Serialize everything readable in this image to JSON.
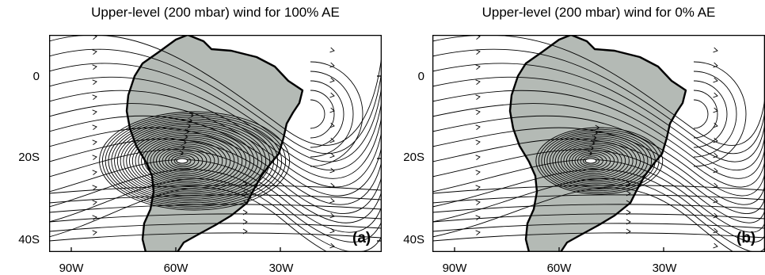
{
  "panels": [
    {
      "title": "Upper-level (200 mbar) wind for 100% AE",
      "label": "(a)"
    },
    {
      "title": "Upper-level (200 mbar) wind for 0% AE",
      "label": "(b)"
    }
  ],
  "axes": {
    "y_ticks": [
      "0",
      "20S",
      "40S"
    ],
    "x_ticks": [
      "90W",
      "60W",
      "30W"
    ]
  },
  "colors": {
    "land": "#b4bab5",
    "frame": "#000000",
    "streamline": "#000000"
  }
}
